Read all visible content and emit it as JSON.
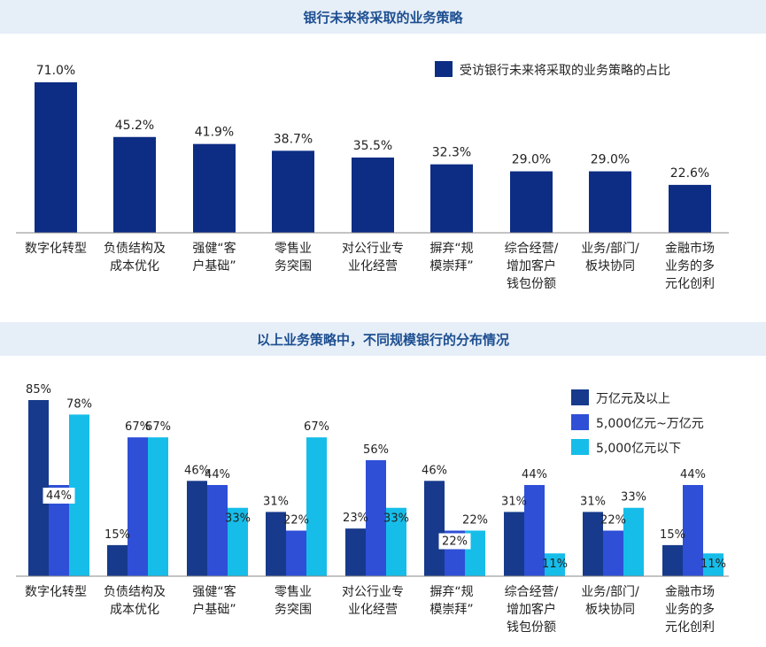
{
  "chart_data": [
    {
      "type": "bar",
      "title": "银行未来将采取的业务策略",
      "categories": [
        "数字化转型",
        "负债结构及成本优化",
        "强健“客户基础”",
        "零售业务突围",
        "对公行业专业化经营",
        "摒弃“规模崇拜”",
        "综合经营/增加客户钱包份额",
        "业务/部门/板块协同",
        "金融市场业务的多元化创利"
      ],
      "category_lines": [
        [
          "数字化转型"
        ],
        [
          "负债结构及",
          "成本优化"
        ],
        [
          "强健“客",
          "户基础”"
        ],
        [
          "零售业",
          "务突围"
        ],
        [
          "对公行业专",
          "业化经营"
        ],
        [
          "摒弃“规",
          "模崇拜”"
        ],
        [
          "综合经营/",
          "增加客户",
          "钱包份额"
        ],
        [
          "业务/部门/",
          "板块协同"
        ],
        [
          "金融市场",
          "业务的多",
          "元化创利"
        ]
      ],
      "series": [
        {
          "name": "受访银行未来将采取的业务策略的占比",
          "values": [
            71.0,
            45.2,
            41.9,
            38.7,
            35.5,
            32.3,
            29.0,
            29.0,
            22.6
          ],
          "labels": [
            "71.0%",
            "45.2%",
            "41.9%",
            "38.7%",
            "35.5%",
            "32.3%",
            "29.0%",
            "29.0%",
            "22.6%"
          ],
          "color": "#0d2d84"
        }
      ],
      "ylim": [
        0,
        71
      ],
      "legend_position": "top-right",
      "grid": false
    },
    {
      "type": "bar",
      "title": "以上业务策略中，不同规模银行的分布情况",
      "categories": [
        "数字化转型",
        "负债结构及成本优化",
        "强健“客户基础”",
        "零售业务突围",
        "对公行业专业化经营",
        "摒弃“规模崇拜”",
        "综合经营/增加客户钱包份额",
        "业务/部门/板块协同",
        "金融市场业务的多元化创利"
      ],
      "category_lines": [
        [
          "数字化转型"
        ],
        [
          "负债结构及",
          "成本优化"
        ],
        [
          "强健“客",
          "户基础”"
        ],
        [
          "零售业",
          "务突围"
        ],
        [
          "对公行业专",
          "业化经营"
        ],
        [
          "摒弃“规",
          "模崇拜”"
        ],
        [
          "综合经营/",
          "增加客户",
          "钱包份额"
        ],
        [
          "业务/部门/",
          "板块协同"
        ],
        [
          "金融市场",
          "业务的多",
          "元化创利"
        ]
      ],
      "series": [
        {
          "name": "万亿元及以上",
          "values": [
            85,
            15,
            46,
            31,
            23,
            46,
            31,
            31,
            15
          ],
          "labels": [
            "85%",
            "15%",
            "46%",
            "31%",
            "23%",
            "46%",
            "31%",
            "31%",
            "15%"
          ],
          "color": "#173a8c"
        },
        {
          "name": "5,000亿元~万亿元",
          "values": [
            44,
            67,
            44,
            22,
            56,
            22,
            44,
            22,
            44
          ],
          "labels": [
            "44%",
            "67%",
            "44%",
            "22%",
            "56%",
            "22%",
            "44%",
            "22%",
            "44%"
          ],
          "color": "#2e4fd6"
        },
        {
          "name": "5,000亿元以下",
          "values": [
            78,
            67,
            33,
            67,
            33,
            22,
            11,
            33,
            11
          ],
          "labels": [
            "78%",
            "67%",
            "33%",
            "67%",
            "33%",
            "22%",
            "11%",
            "33%",
            "11%"
          ],
          "color": "#16bde9"
        }
      ],
      "ylim": [
        0,
        85
      ],
      "legend_position": "top-right",
      "grid": false
    }
  ]
}
